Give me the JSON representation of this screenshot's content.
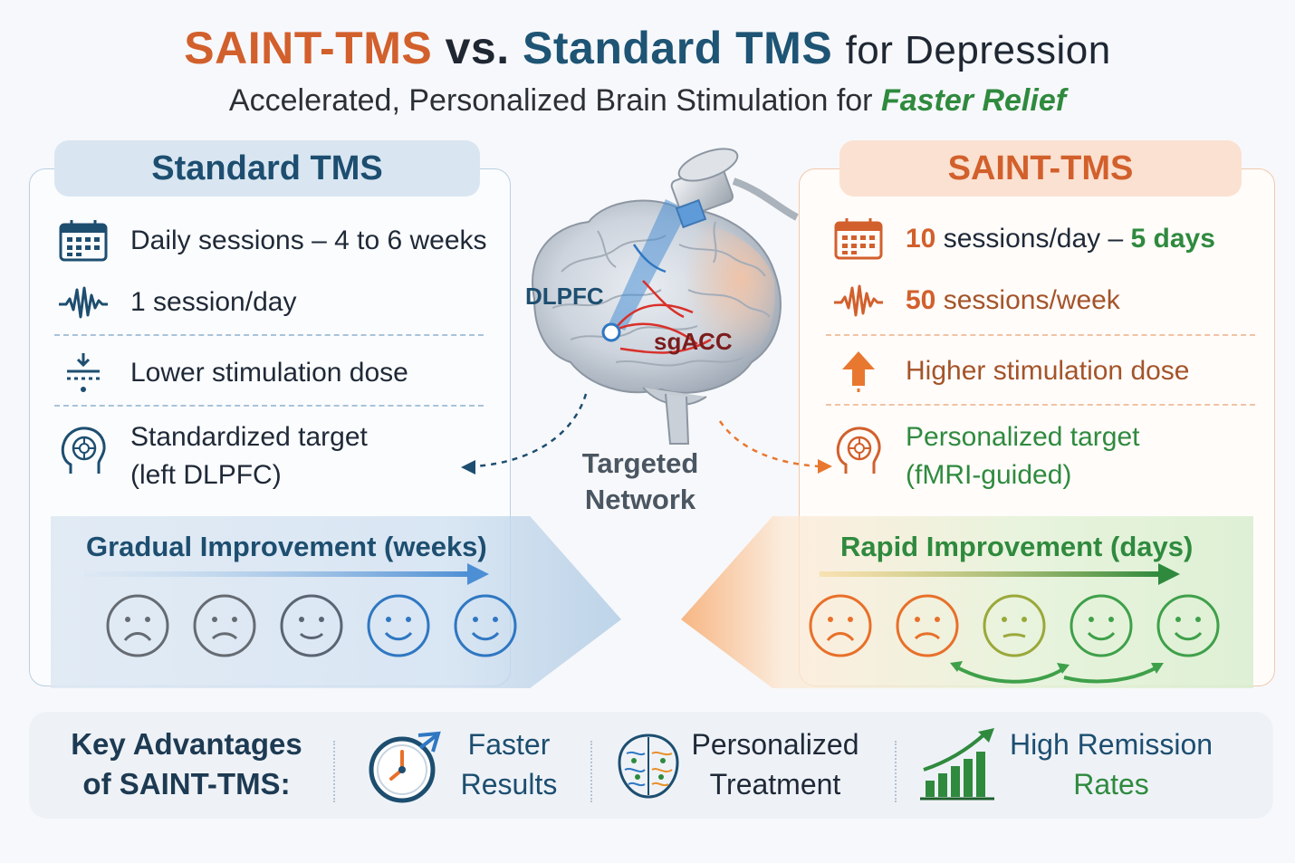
{
  "title": {
    "saint": "SAINT-TMS",
    "vs": "vs.",
    "standard": "Standard TMS",
    "rest": "for Depression"
  },
  "subtitle": {
    "main": "Accelerated, Personalized Brain Stimulation for",
    "highlight": "Faster Relief"
  },
  "standard": {
    "heading": "Standard TMS",
    "items": [
      {
        "text": "Daily sessions – 4 to 6 weeks",
        "icon": "calendar-icon"
      },
      {
        "text": "1 session/day",
        "icon": "waveform-icon"
      },
      {
        "text": "Lower stimulation dose",
        "icon": "dose-low-icon"
      },
      {
        "text_line1": "Standardized target",
        "text_line2": "(left DLPFC)",
        "icon": "head-target-icon"
      }
    ],
    "improvement": "Gradual Improvement (weeks)",
    "faces": [
      "sad",
      "sad",
      "neutral-smile",
      "smile",
      "smile"
    ]
  },
  "saint": {
    "heading": "SAINT-TMS",
    "items": [
      {
        "part1": "10",
        "part2": "sessions/day –",
        "part3": "5 days",
        "icon": "calendar-icon"
      },
      {
        "part1": "50",
        "part2": "sessions/week",
        "icon": "waveform-icon"
      },
      {
        "text": "Higher stimulation dose",
        "icon": "arrow-up-icon"
      },
      {
        "text_line1": "Personalized target",
        "text_line2": "(fMRI-guided)",
        "icon": "head-target-icon"
      }
    ],
    "improvement": "Rapid Improvement (days)",
    "faces": [
      "sad",
      "sad",
      "neutral",
      "smile",
      "smile"
    ]
  },
  "center": {
    "dlpfc": "DLPFC",
    "sgacc": "sgACC",
    "network_line1": "Targeted",
    "network_line2": "Network"
  },
  "advantages": {
    "title_line1": "Key Advantages",
    "title_line2": "of SAINT-TMS:",
    "items": [
      {
        "line1": "Faster",
        "line2": "Results",
        "icon": "clock-icon"
      },
      {
        "line1": "Personalized",
        "line2": "Treatment",
        "icon": "brain-network-icon"
      },
      {
        "line1": "High Remission",
        "line2": "Rates",
        "icon": "growth-chart-icon"
      }
    ]
  },
  "colors": {
    "saint_orange": "#d2602c",
    "standard_blue": "#1d4e70",
    "accent_green": "#2f8a3e"
  }
}
